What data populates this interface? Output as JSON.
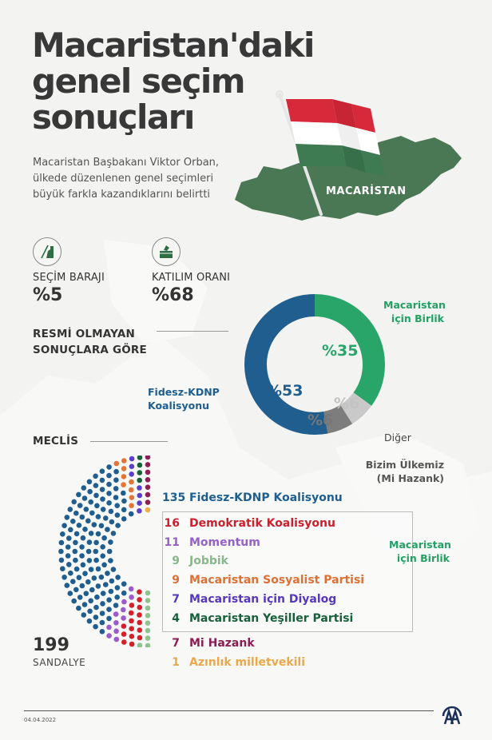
{
  "header": {
    "title_lines": [
      "Macaristan'daki",
      "genel seçim",
      "sonuçları"
    ],
    "subtitle": "Macaristan Başbakanı Viktor Orban, ülkede düzenlenen genel seçimleri büyük farkla kazandıklarını belirtti"
  },
  "map": {
    "country_label": "MACARİSTAN",
    "flag_colors": [
      "#d6293a",
      "#ffffff",
      "#3e7a52"
    ],
    "map_color": "#4a7855"
  },
  "stats": [
    {
      "icon": "threshold-icon",
      "label": "SEÇİM BARAJI",
      "value": "%5"
    },
    {
      "icon": "ballot-box-icon",
      "label": "KATILIM ORANI",
      "value": "%68"
    }
  ],
  "results_heading": [
    "RESMİ OLMAYAN",
    "SONUÇLARA GÖRE"
  ],
  "parliament_heading": "MECLİS",
  "seats": {
    "total": "199",
    "label": "SANDALYE"
  },
  "chart_data": [
    {
      "type": "pie",
      "title": "Resmi olmayan sonuçlara göre",
      "subtype": "donut",
      "categories": [
        "Fidesz-KDNP Koalisyonu",
        "Macaristan için Birlik",
        "Diğer",
        "Bizim Ülkemiz (Mi Hazank)"
      ],
      "values": [
        53,
        35,
        6,
        6
      ],
      "value_labels": [
        "%53",
        "%35",
        "%6",
        "%6"
      ],
      "colors": [
        "#1f5e8e",
        "#2aa56a",
        "#c9c9c9",
        "#7d7d7d"
      ],
      "labels": {
        "fidesz": [
          "Fidesz-KDNP",
          "Koalisyonu"
        ],
        "birlik": [
          "Macaristan",
          "için Birlik"
        ],
        "diger": "Diğer",
        "mihazank": [
          "Bizim Ülkemiz",
          "(Mi Hazank)"
        ]
      }
    },
    {
      "type": "bar",
      "subtype": "parliament-seats",
      "title": "Meclis",
      "total": 199,
      "categories": [
        "Fidesz-KDNP Koalisyonu",
        "Demokratik Koalisyonu",
        "Momentum",
        "Jobbik",
        "Macaristan Sosyalist Partisi",
        "Macaristan için Diyalog",
        "Macaristan Yeşiller Partisi",
        "Mi Hazank",
        "Azınlık milletvekili"
      ],
      "values": [
        135,
        16,
        11,
        9,
        9,
        7,
        4,
        7,
        1
      ],
      "colors": [
        "#1f5e8e",
        "#d4202b",
        "#9b5bc9",
        "#8ec28e",
        "#e0763a",
        "#5b3fc7",
        "#17603a",
        "#8e1f55",
        "#efac4a"
      ],
      "groups": [
        {
          "name": "Macaristan için Birlik",
          "members": [
            "Demokratik Koalisyonu",
            "Momentum",
            "Jobbik",
            "Macaristan Sosyalist Partisi",
            "Macaristan için Diyalog",
            "Macaristan Yeşiller Partisi"
          ]
        }
      ]
    }
  ],
  "legend": {
    "top": {
      "num": "135",
      "name": "Fidesz-KDNP Koalisyonu",
      "color": "#1f5e8e"
    },
    "boxed": [
      {
        "num": "16",
        "name": "Demokratik Koalisyonu",
        "color": "#cc1f2b"
      },
      {
        "num": "11",
        "name": "Momentum",
        "color": "#9560c8"
      },
      {
        "num": "9",
        "name": "Jobbik",
        "color": "#87b889"
      },
      {
        "num": "9",
        "name": "Macaristan Sosyalist Partisi",
        "color": "#de6f35"
      },
      {
        "num": "7",
        "name": "Macaristan için Diyalog",
        "color": "#5637c0"
      },
      {
        "num": "4",
        "name": "Macaristan Yeşiller Partisi",
        "color": "#17603a"
      }
    ],
    "group_label": [
      "Macaristan",
      "için Birlik"
    ],
    "group_color": "#23a064",
    "bottom": [
      {
        "num": "7",
        "name": "Mi Hazank",
        "color": "#8a1d52"
      },
      {
        "num": "1",
        "name": "Azınlık milletvekili",
        "color": "#eba84a"
      }
    ]
  },
  "footer": {
    "date": "04.04.2022",
    "logo": "AA"
  }
}
